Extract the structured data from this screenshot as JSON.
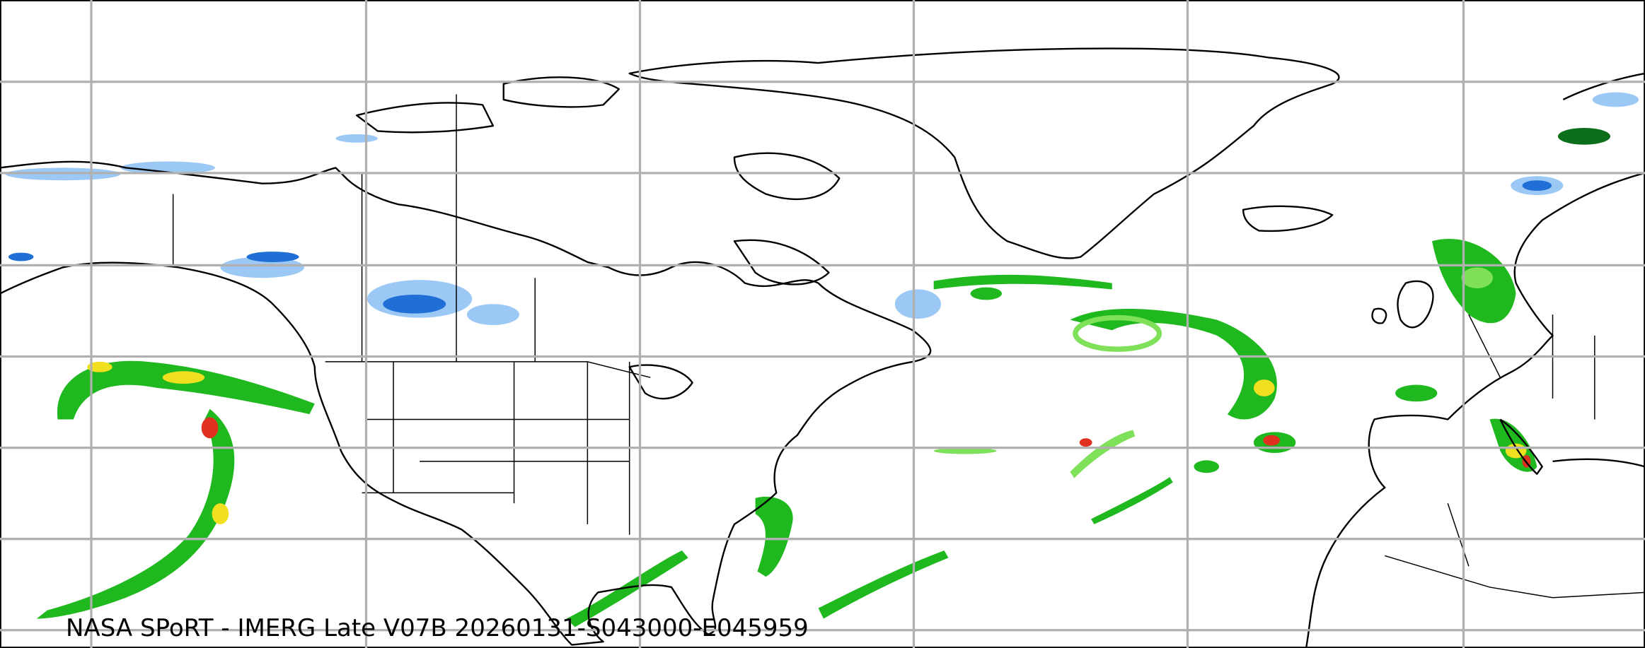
{
  "caption": "NASA SPoRT - IMERG Late V07B 20260131-S043000-E045959",
  "colors": {
    "gridline": "#b0b0b0",
    "snow_light": "#9cc8f5",
    "snow_heavy": "#1f6fd6",
    "rain_light": "#7fe05a",
    "rain_moderate": "#1fb81f",
    "rain_heavy": "#f0e020",
    "rain_very_heavy": "#e03020",
    "rain_dark": "#0a6e1a"
  }
}
